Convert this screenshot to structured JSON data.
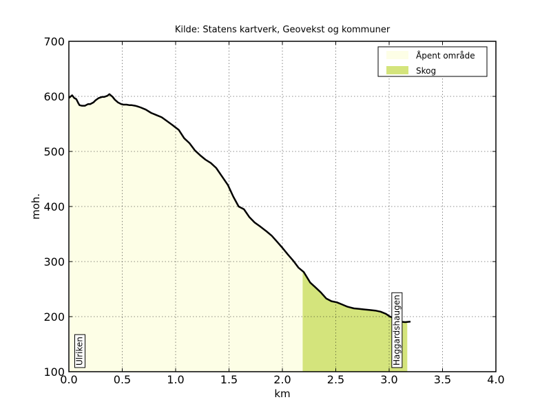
{
  "chart_data": {
    "type": "area",
    "title": "Kilde: Statens kartverk, Geovekst og kommuner",
    "xlabel": "km",
    "ylabel": "moh.",
    "xlim": [
      0,
      4.0
    ],
    "ylim": [
      100,
      700
    ],
    "xticks": [
      0.0,
      0.5,
      1.0,
      1.5,
      2.0,
      2.5,
      3.0,
      3.5,
      4.0
    ],
    "xtick_labels": [
      "0.0",
      "0.5",
      "1.0",
      "1.5",
      "2.0",
      "2.5",
      "3.0",
      "3.5",
      "4.0"
    ],
    "yticks": [
      100,
      200,
      300,
      400,
      500,
      600,
      700
    ],
    "ytick_labels": [
      "100",
      "200",
      "300",
      "400",
      "500",
      "600",
      "700"
    ],
    "grid": true,
    "legend_position": "top-right",
    "legend": [
      {
        "label": "Åpent område",
        "color": "#fdfee6"
      },
      {
        "label": "Skog",
        "color": "#d4e47c"
      }
    ],
    "colors": {
      "line": "#000000",
      "open": "#fdfee6",
      "forest": "#d4e47c"
    },
    "series": [
      {
        "x": [
          0.0,
          0.03,
          0.05,
          0.07,
          0.09,
          0.1,
          0.12,
          0.15,
          0.18,
          0.2,
          0.23,
          0.25,
          0.28,
          0.31,
          0.33,
          0.36,
          0.38,
          0.41,
          0.43,
          0.46,
          0.49,
          0.51,
          0.54,
          0.57,
          0.59,
          0.62,
          0.64,
          0.67,
          0.72,
          0.77,
          0.82,
          0.87,
          0.92,
          0.97,
          1.03,
          1.08,
          1.13,
          1.18,
          1.23,
          1.28,
          1.33,
          1.38,
          1.44,
          1.49,
          1.54,
          1.59,
          1.64,
          1.69,
          1.74,
          1.79,
          1.85,
          1.9,
          1.95,
          2.0,
          2.05,
          2.1,
          2.15,
          2.2,
          2.26,
          2.31,
          2.36,
          2.41,
          2.46,
          2.51,
          2.56,
          2.61,
          2.67,
          2.72,
          2.77,
          2.82,
          2.87,
          2.92,
          2.97,
          3.0,
          3.05,
          3.1,
          3.15,
          3.2
        ],
        "y": [
          597,
          602,
          597,
          595,
          587,
          584,
          583,
          583,
          586,
          586,
          589,
          593,
          597,
          599,
          599,
          601,
          604,
          599,
          594,
          589,
          586,
          585,
          585,
          584,
          584,
          583,
          582,
          580,
          576,
          570,
          566,
          562,
          555,
          548,
          539,
          524,
          515,
          502,
          493,
          485,
          479,
          470,
          453,
          439,
          418,
          400,
          395,
          381,
          371,
          364,
          355,
          347,
          336,
          325,
          313,
          302,
          289,
          281,
          262,
          253,
          244,
          233,
          228,
          226,
          222,
          218,
          215,
          214,
          213,
          212,
          211,
          209,
          205,
          201,
          196,
          191,
          190,
          191
        ]
      }
    ],
    "landcover": [
      {
        "from": 0.0,
        "to": 2.19,
        "type": "open"
      },
      {
        "from": 2.19,
        "to": 3.17,
        "type": "forest"
      }
    ],
    "poi": [
      {
        "name": "Ulriken",
        "x": 0.1
      },
      {
        "name": "Haggardshaugen",
        "x": 3.07
      }
    ]
  }
}
